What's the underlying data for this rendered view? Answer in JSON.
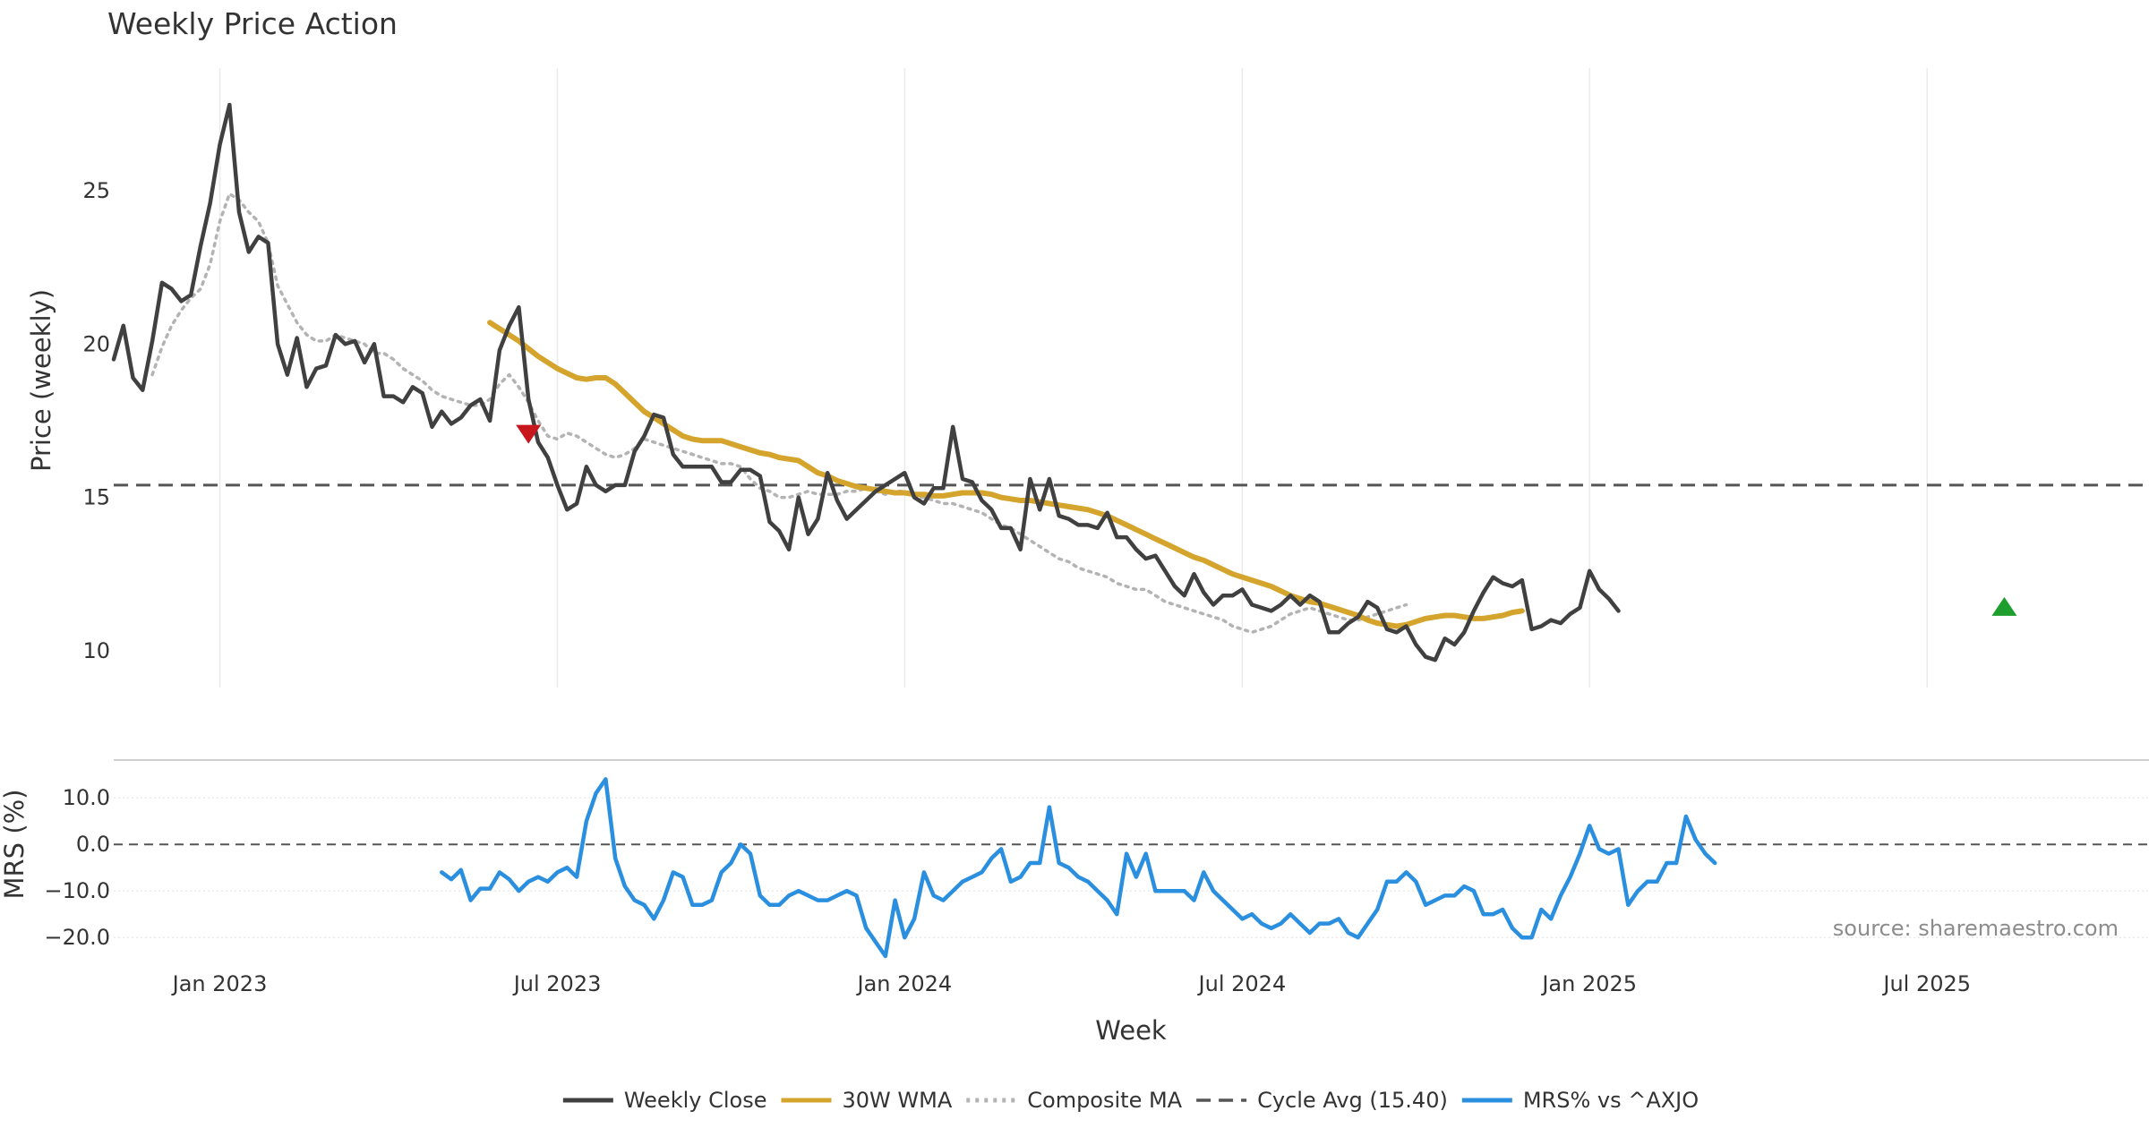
{
  "chart_data": {
    "type": "line",
    "title": "Weekly Price Action",
    "xlabel": "Week",
    "source": "source: sharemaestro.com",
    "x_ticks": [
      "Jan 2023",
      "Jul 2023",
      "Jan 2024",
      "Jul 2024",
      "Jan 2025",
      "Jul 2025"
    ],
    "x_tick_weeks": [
      16,
      51,
      87,
      122,
      158,
      193
    ],
    "x_range": [
      5,
      216
    ],
    "price_panel": {
      "ylabel": "Price (weekly)",
      "ylim": [
        8.8,
        29
      ],
      "y_ticks": [
        10,
        15,
        20,
        25
      ],
      "cycle_avg": 15.4,
      "series": [
        {
          "name": "Weekly Close",
          "color": "#404040",
          "start_week": 5,
          "values": [
            19.5,
            20.6,
            18.9,
            18.5,
            20.1,
            22.0,
            21.8,
            21.4,
            21.6,
            23.2,
            24.6,
            26.5,
            27.8,
            24.3,
            23.0,
            23.5,
            23.3,
            20.0,
            19.0,
            20.2,
            18.6,
            19.2,
            19.3,
            20.3,
            20.0,
            20.1,
            19.4,
            20.0,
            18.3,
            18.3,
            18.1,
            18.6,
            18.4,
            17.3,
            17.8,
            17.4,
            17.6,
            18.0,
            18.2,
            17.5,
            19.8,
            20.6,
            21.2,
            18.2,
            16.8,
            16.3,
            15.4,
            14.6,
            14.8,
            16.0,
            15.4,
            15.2,
            15.4,
            15.4,
            16.5,
            17.0,
            17.7,
            17.6,
            16.4,
            16.0,
            16.0,
            16.0,
            16.0,
            15.5,
            15.5,
            15.9,
            15.9,
            15.7,
            14.2,
            13.9,
            13.3,
            15.0,
            13.8,
            14.3,
            15.8,
            14.9,
            14.3,
            14.6,
            14.9,
            15.2,
            15.4,
            15.6,
            15.8,
            15.0,
            14.8,
            15.3,
            15.3,
            17.3,
            15.6,
            15.5,
            14.9,
            14.6,
            14.0,
            14.0,
            13.3,
            15.6,
            14.6,
            15.6,
            14.4,
            14.3,
            14.1,
            14.1,
            14.0,
            14.5,
            13.7,
            13.7,
            13.3,
            13.0,
            13.1,
            12.6,
            12.1,
            11.8,
            12.5,
            11.9,
            11.5,
            11.8,
            11.8,
            12.0,
            11.5,
            11.4,
            11.3,
            11.5,
            11.8,
            11.5,
            11.8,
            11.6,
            10.6,
            10.6,
            10.9,
            11.1,
            11.6,
            11.4,
            10.7,
            10.6,
            10.8,
            10.2,
            9.8,
            9.7,
            10.4,
            10.2,
            10.6,
            11.3,
            11.9,
            12.4,
            12.2,
            12.1,
            12.3,
            10.7,
            10.8,
            11.0,
            10.9,
            11.2,
            11.4,
            12.6,
            12.0,
            11.7,
            11.3
          ]
        },
        {
          "name": "30W WMA",
          "color": "#D4A42C",
          "start_week": 44,
          "values": [
            20.7,
            20.5,
            20.3,
            20.1,
            19.85,
            19.6,
            19.4,
            19.2,
            19.05,
            18.9,
            18.85,
            18.9,
            18.9,
            18.7,
            18.4,
            18.1,
            17.8,
            17.6,
            17.4,
            17.2,
            17.0,
            16.9,
            16.85,
            16.85,
            16.85,
            16.75,
            16.65,
            16.55,
            16.45,
            16.4,
            16.3,
            16.25,
            16.2,
            16.0,
            15.8,
            15.7,
            15.55,
            15.45,
            15.35,
            15.3,
            15.25,
            15.2,
            15.15,
            15.15,
            15.1,
            15.1,
            15.05,
            15.05,
            15.1,
            15.15,
            15.15,
            15.15,
            15.1,
            15.0,
            14.95,
            14.9,
            14.9,
            14.85,
            14.8,
            14.75,
            14.7,
            14.65,
            14.6,
            14.5,
            14.4,
            14.25,
            14.1,
            13.95,
            13.8,
            13.65,
            13.5,
            13.35,
            13.2,
            13.05,
            12.95,
            12.8,
            12.65,
            12.5,
            12.4,
            12.3,
            12.2,
            12.1,
            11.95,
            11.8,
            11.7,
            11.6,
            11.55,
            11.45,
            11.35,
            11.25,
            11.15,
            11.0,
            10.9,
            10.85,
            10.8,
            10.85,
            10.95,
            11.05,
            11.1,
            11.15,
            11.15,
            11.1,
            11.05,
            11.05,
            11.1,
            11.15,
            11.25,
            11.3
          ]
        },
        {
          "name": "Composite MA",
          "color": "#B3B3B3",
          "start_week": 9,
          "values": [
            19.0,
            19.9,
            20.6,
            21.1,
            21.5,
            21.8,
            22.6,
            24.0,
            24.9,
            24.7,
            24.3,
            24.0,
            23.3,
            21.9,
            21.3,
            20.7,
            20.3,
            20.1,
            20.1,
            20.3,
            20.2,
            20.1,
            20.0,
            19.7,
            19.7,
            19.5,
            19.2,
            19.0,
            18.8,
            18.5,
            18.3,
            18.2,
            18.1,
            18.0,
            18.0,
            18.2,
            18.7,
            19.0,
            18.6,
            18.1,
            17.5,
            17.0,
            16.9,
            17.1,
            17.0,
            16.8,
            16.6,
            16.4,
            16.3,
            16.4,
            16.6,
            16.9,
            16.8,
            16.7,
            16.6,
            16.5,
            16.4,
            16.3,
            16.2,
            16.1,
            16.1,
            16.0,
            15.6,
            15.3,
            15.2,
            15.0,
            15.0,
            15.1,
            15.2,
            15.1,
            15.1,
            15.1,
            15.2,
            15.2,
            15.3,
            15.2,
            15.1,
            15.2,
            15.2,
            15.0,
            15.0,
            14.9,
            14.8,
            14.8,
            14.7,
            14.6,
            14.5,
            14.3,
            14.1,
            14.0,
            13.8,
            13.6,
            13.4,
            13.2,
            13.0,
            12.9,
            12.7,
            12.6,
            12.5,
            12.4,
            12.2,
            12.1,
            12.0,
            12.0,
            11.8,
            11.6,
            11.5,
            11.4,
            11.3,
            11.2,
            11.1,
            11.0,
            10.8,
            10.7,
            10.6,
            10.7,
            10.8,
            11.0,
            11.2,
            11.3,
            11.4,
            11.3,
            11.2,
            11.1,
            11.0,
            11.0,
            11.1,
            11.2,
            11.3,
            11.4,
            11.5
          ]
        }
      ],
      "markers": [
        {
          "type": "sell",
          "week": 48,
          "price": 17.1,
          "color": "#C8161D"
        },
        {
          "type": "buy",
          "week": 201,
          "price": 11.4,
          "color": "#1E9E2C"
        }
      ]
    },
    "mrs_panel": {
      "ylabel": "MRS (%)",
      "ylim": [
        -24,
        16
      ],
      "y_ticks": [
        10,
        0,
        -10,
        -20
      ],
      "y_tick_labels": [
        "10.0",
        "0.0",
        "−10.0",
        "−20.0"
      ],
      "series": [
        {
          "name": "MRS% vs ^AXJO",
          "color": "#2B8FE0",
          "start_week": 39,
          "values": [
            -6.0,
            -7.5,
            -5.5,
            -12.0,
            -9.5,
            -9.5,
            -6.0,
            -7.5,
            -10.0,
            -8.0,
            -7.0,
            -8.0,
            -6.0,
            -5.0,
            -7.0,
            5.0,
            11.0,
            14.0,
            -3.0,
            -9.0,
            -12.0,
            -13.0,
            -16.0,
            -12.0,
            -6.0,
            -7.0,
            -13.0,
            -13.0,
            -12.0,
            -6.0,
            -4.0,
            0.0,
            -2.0,
            -11.0,
            -13.0,
            -13.0,
            -11.0,
            -10.0,
            -11.0,
            -12.0,
            -12.0,
            -11.0,
            -10.0,
            -11.0,
            -18.0,
            -21.0,
            -24.0,
            -12.0,
            -20.0,
            -16.0,
            -6.0,
            -11.0,
            -12.0,
            -10.0,
            -8.0,
            -7.0,
            -6.0,
            -3.0,
            -1.0,
            -8.0,
            -7.0,
            -4.0,
            -4.0,
            8.0,
            -4.0,
            -5.0,
            -7.0,
            -8.0,
            -10.0,
            -12.0,
            -15.0,
            -2.0,
            -7.0,
            -2.0,
            -10.0,
            -10.0,
            -10.0,
            -10.0,
            -12.0,
            -6.0,
            -10.0,
            -12.0,
            -14.0,
            -16.0,
            -15.0,
            -17.0,
            -18.0,
            -17.0,
            -15.0,
            -17.0,
            -19.0,
            -17.0,
            -17.0,
            -16.0,
            -19.0,
            -20.0,
            -17.0,
            -14.0,
            -8.0,
            -8.0,
            -6.0,
            -8.0,
            -13.0,
            -12.0,
            -11.0,
            -11.0,
            -9.0,
            -10.0,
            -15.0,
            -15.0,
            -14.0,
            -18.0,
            -20.0,
            -20.0,
            -14.0,
            -16.0,
            -11.0,
            -7.0,
            -2.0,
            4.0,
            -1.0,
            -2.0,
            -1.0,
            -13.0,
            -10.0,
            -8.0,
            -8.0,
            -4.0,
            -4.0,
            6.0,
            1.0,
            -2.0,
            -4.0
          ]
        }
      ]
    },
    "legend": {
      "position": "bottom",
      "entries": [
        {
          "label": "Weekly Close",
          "color": "#404040",
          "style": "solid"
        },
        {
          "label": "30W WMA",
          "color": "#D4A42C",
          "style": "solid"
        },
        {
          "label": "Composite MA",
          "color": "#B3B3B3",
          "style": "dotted"
        },
        {
          "label": "Cycle Avg (15.40)",
          "color": "#555555",
          "style": "dashed"
        },
        {
          "label": "MRS% vs ^AXJO",
          "color": "#2B8FE0",
          "style": "solid"
        }
      ]
    }
  }
}
